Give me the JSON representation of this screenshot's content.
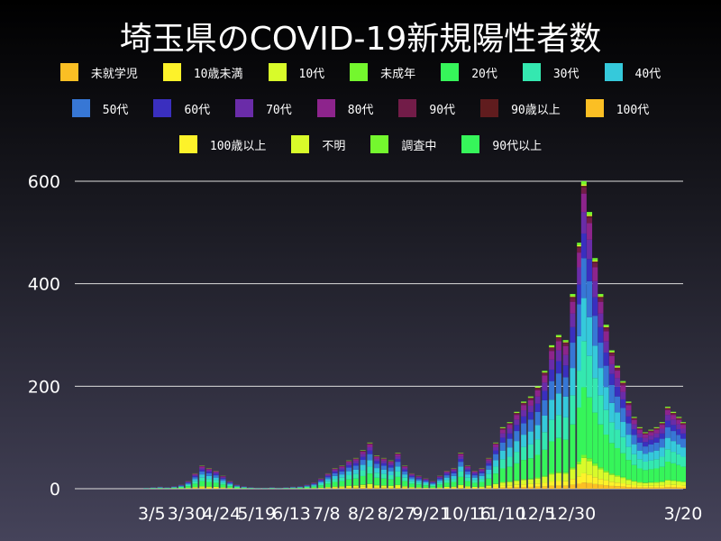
{
  "chart_data": {
    "type": "bar",
    "stacked": true,
    "title": "埼玉県のCOVID-19新規陽性者数",
    "xlabel": "",
    "ylabel": "",
    "ylim": [
      0,
      600
    ],
    "xlim": [
      "2020-01-10",
      "2021-03-20"
    ],
    "grid": true,
    "legend_position": "top",
    "yticks": [
      0,
      200,
      400,
      600
    ],
    "xticks": [
      "3/5",
      "3/30",
      "4/24",
      "5/19",
      "6/13",
      "7/8",
      "8/2",
      "8/27",
      "9/21",
      "10/16",
      "11/10",
      "12/5",
      "12/30",
      "3/20"
    ],
    "xtick_dates": [
      "2020-03-05",
      "2020-03-30",
      "2020-04-24",
      "2020-05-19",
      "2020-06-13",
      "2020-07-08",
      "2020-08-02",
      "2020-08-27",
      "2020-09-21",
      "2020-10-16",
      "2020-11-10",
      "2020-12-05",
      "2020-12-30",
      "2021-03-20"
    ],
    "series": [
      {
        "name": "未就学児",
        "color": "#fbbf24",
        "share": 0.02
      },
      {
        "name": "10歳未満",
        "color": "#fdf22a",
        "share": 0.03
      },
      {
        "name": "10代",
        "color": "#d8fb2a",
        "share": 0.05
      },
      {
        "name": "未成年",
        "color": "#74f72e",
        "share": 0.01
      },
      {
        "name": "20代",
        "color": "#36f55a",
        "share": 0.22
      },
      {
        "name": "30代",
        "color": "#34e8b0",
        "share": 0.15
      },
      {
        "name": "40代",
        "color": "#35c9db",
        "share": 0.14
      },
      {
        "name": "50代",
        "color": "#3777d5",
        "share": 0.13
      },
      {
        "name": "60代",
        "color": "#3a2fbf",
        "share": 0.08
      },
      {
        "name": "70代",
        "color": "#6a2ca8",
        "share": 0.07
      },
      {
        "name": "80代",
        "color": "#8d248c",
        "share": 0.06
      },
      {
        "name": "90代",
        "color": "#721c48",
        "share": 0.02
      },
      {
        "name": "90歳以上",
        "color": "#601c1e",
        "share": 0.005
      },
      {
        "name": "100代",
        "color": "#fbbf24",
        "share": 0.0
      },
      {
        "name": "100歳以上",
        "color": "#fdf22a",
        "share": 0.0
      },
      {
        "name": "不明",
        "color": "#d8fb2a",
        "share": 0.005
      },
      {
        "name": "調査中",
        "color": "#74f72e",
        "share": 0.01
      },
      {
        "name": "90代以上",
        "color": "#36f55a",
        "share": 0.0
      }
    ],
    "totals": [
      [
        "2020-03-01",
        2
      ],
      [
        "2020-03-06",
        3
      ],
      [
        "2020-03-11",
        4
      ],
      [
        "2020-03-16",
        3
      ],
      [
        "2020-03-21",
        5
      ],
      [
        "2020-03-26",
        8
      ],
      [
        "2020-03-31",
        15
      ],
      [
        "2020-04-05",
        30
      ],
      [
        "2020-04-10",
        45
      ],
      [
        "2020-04-15",
        40
      ],
      [
        "2020-04-20",
        35
      ],
      [
        "2020-04-25",
        25
      ],
      [
        "2020-04-30",
        15
      ],
      [
        "2020-05-05",
        8
      ],
      [
        "2020-05-10",
        5
      ],
      [
        "2020-05-15",
        3
      ],
      [
        "2020-05-20",
        2
      ],
      [
        "2020-05-25",
        2
      ],
      [
        "2020-05-30",
        3
      ],
      [
        "2020-06-04",
        2
      ],
      [
        "2020-06-09",
        3
      ],
      [
        "2020-06-14",
        4
      ],
      [
        "2020-06-19",
        5
      ],
      [
        "2020-06-24",
        8
      ],
      [
        "2020-06-29",
        12
      ],
      [
        "2020-07-04",
        20
      ],
      [
        "2020-07-09",
        30
      ],
      [
        "2020-07-14",
        40
      ],
      [
        "2020-07-19",
        45
      ],
      [
        "2020-07-24",
        55
      ],
      [
        "2020-07-29",
        60
      ],
      [
        "2020-08-03",
        75
      ],
      [
        "2020-08-08",
        90
      ],
      [
        "2020-08-13",
        65
      ],
      [
        "2020-08-18",
        60
      ],
      [
        "2020-08-23",
        55
      ],
      [
        "2020-08-28",
        70
      ],
      [
        "2020-09-02",
        45
      ],
      [
        "2020-09-07",
        30
      ],
      [
        "2020-09-12",
        25
      ],
      [
        "2020-09-17",
        20
      ],
      [
        "2020-09-22",
        15
      ],
      [
        "2020-09-27",
        25
      ],
      [
        "2020-10-02",
        35
      ],
      [
        "2020-10-07",
        40
      ],
      [
        "2020-10-12",
        70
      ],
      [
        "2020-10-17",
        45
      ],
      [
        "2020-10-22",
        35
      ],
      [
        "2020-10-27",
        40
      ],
      [
        "2020-11-01",
        60
      ],
      [
        "2020-11-06",
        90
      ],
      [
        "2020-11-11",
        120
      ],
      [
        "2020-11-16",
        130
      ],
      [
        "2020-11-21",
        150
      ],
      [
        "2020-11-26",
        170
      ],
      [
        "2020-12-01",
        180
      ],
      [
        "2020-12-06",
        200
      ],
      [
        "2020-12-11",
        230
      ],
      [
        "2020-12-16",
        280
      ],
      [
        "2020-12-21",
        300
      ],
      [
        "2020-12-26",
        290
      ],
      [
        "2020-12-31",
        380
      ],
      [
        "2021-01-05",
        480
      ],
      [
        "2021-01-08",
        600
      ],
      [
        "2021-01-12",
        540
      ],
      [
        "2021-01-16",
        450
      ],
      [
        "2021-01-20",
        380
      ],
      [
        "2021-01-24",
        320
      ],
      [
        "2021-01-28",
        270
      ],
      [
        "2021-02-01",
        240
      ],
      [
        "2021-02-05",
        210
      ],
      [
        "2021-02-09",
        170
      ],
      [
        "2021-02-13",
        140
      ],
      [
        "2021-02-17",
        120
      ],
      [
        "2021-02-21",
        110
      ],
      [
        "2021-02-25",
        115
      ],
      [
        "2021-03-01",
        120
      ],
      [
        "2021-03-05",
        130
      ],
      [
        "2021-03-09",
        160
      ],
      [
        "2021-03-13",
        150
      ],
      [
        "2021-03-17",
        140
      ],
      [
        "2021-03-20",
        130
      ]
    ]
  }
}
